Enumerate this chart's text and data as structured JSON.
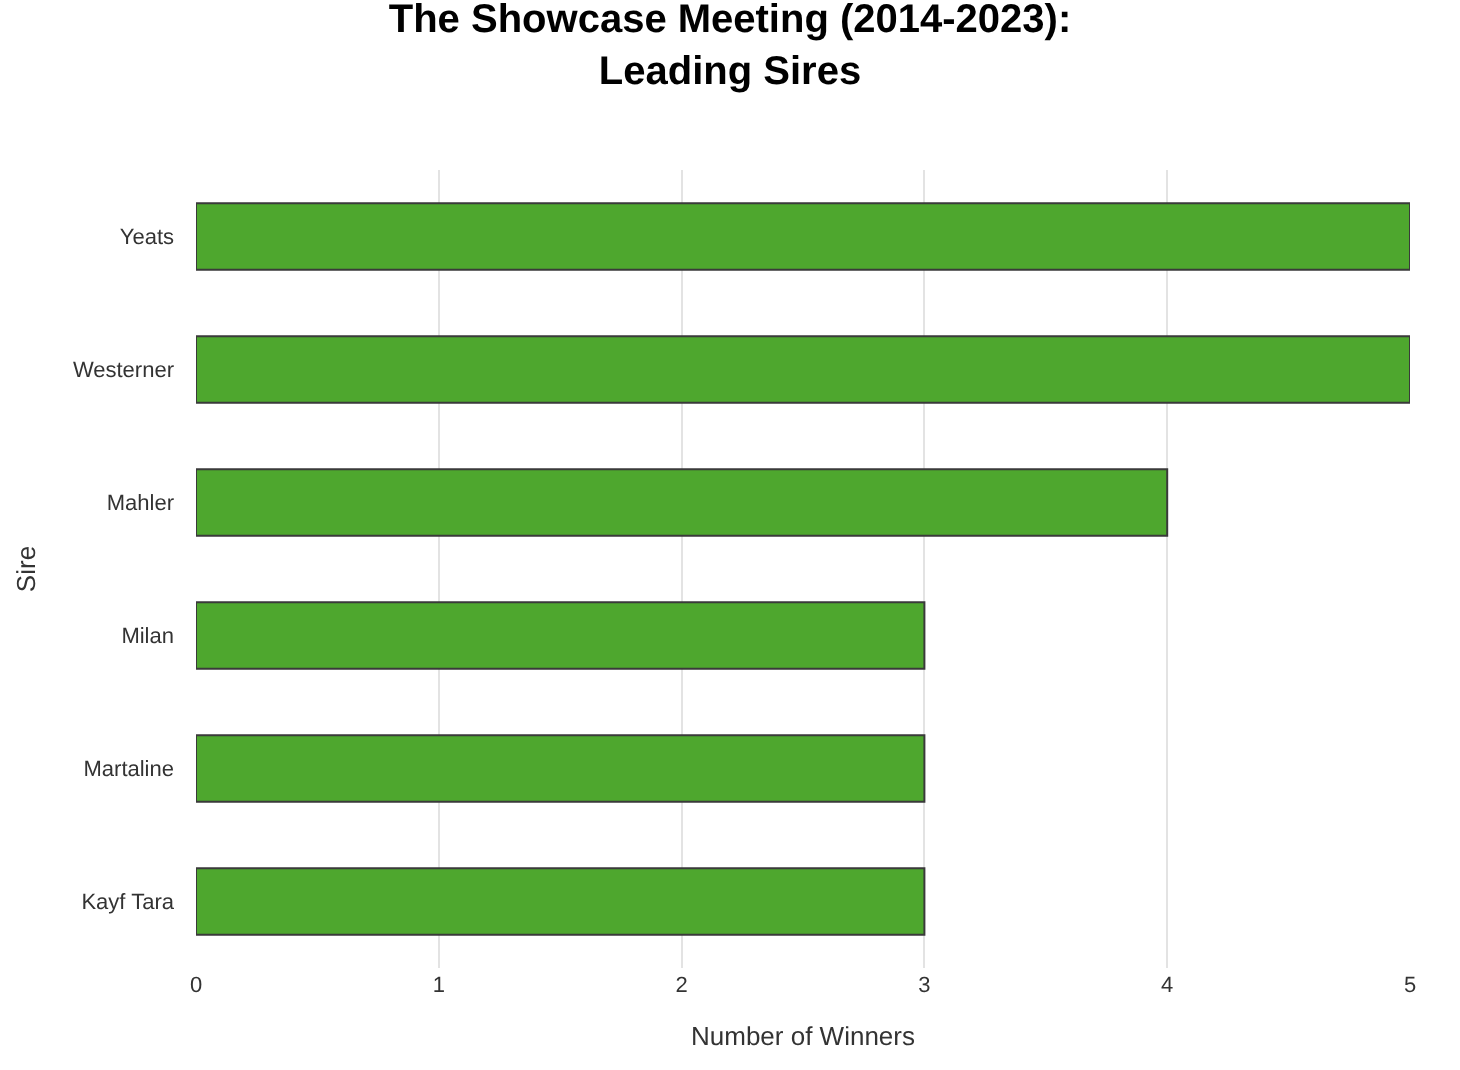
{
  "chart_data": {
    "type": "bar",
    "orientation": "horizontal",
    "title": "The Showcase Meeting (2014-2023):\nLeading Sires",
    "xlabel": "Number of Winners",
    "ylabel": "Sire",
    "categories": [
      "Yeats",
      "Westerner",
      "Mahler",
      "Milan",
      "Martaline",
      "Kayf Tara"
    ],
    "values": [
      5,
      5,
      4,
      3,
      3,
      3
    ],
    "color": "#4ea72e",
    "xlim": [
      0,
      5
    ],
    "xticks": [
      0,
      1,
      2,
      3,
      4,
      5
    ],
    "grid": "x",
    "legend": false
  }
}
